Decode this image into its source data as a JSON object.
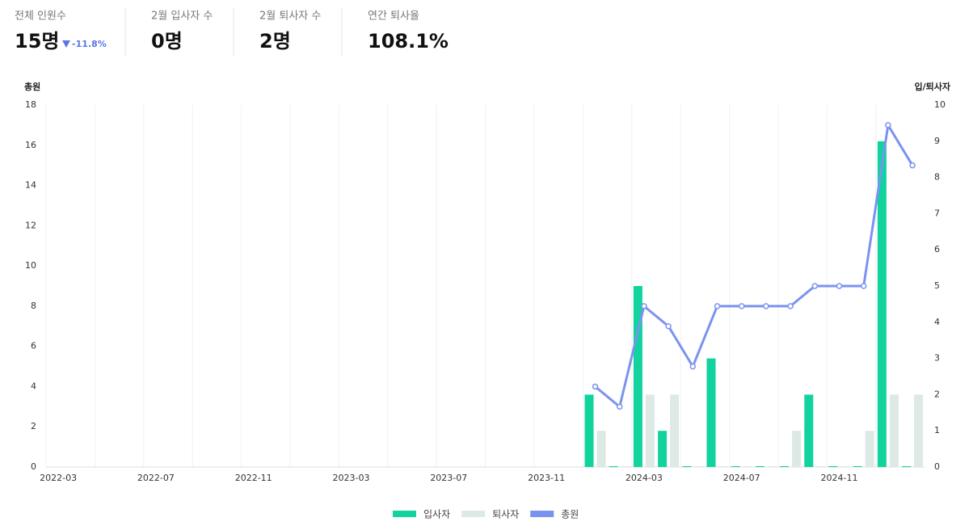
{
  "stats": [
    {
      "label": "전체 인원수",
      "value": "15명",
      "change": "-11.8%"
    },
    {
      "label": "2월 입사자 수",
      "value": "0명"
    },
    {
      "label": "2월 퇴사자 수",
      "value": "2명"
    },
    {
      "label": "연간 퇴사율",
      "value": "108.1%"
    }
  ],
  "chart_data": {
    "type": "bar-line",
    "y_label": "총원",
    "y2_label": "입/퇴사자",
    "categories": [
      "2022-03",
      null,
      null,
      null,
      "2022-07",
      null,
      null,
      null,
      "2022-11",
      null,
      null,
      null,
      "2023-03",
      null,
      null,
      null,
      "2023-07",
      null,
      null,
      null,
      "2023-11",
      null,
      null,
      null,
      "2024-03",
      null,
      null,
      null,
      "2024-07",
      null,
      null,
      null,
      "2024-11",
      null,
      null,
      null
    ],
    "ylim": [
      0,
      18
    ],
    "yticks": [
      0,
      2,
      4,
      6,
      8,
      10,
      12,
      14,
      16,
      18
    ],
    "y2lim": [
      0,
      10
    ],
    "y2ticks": [
      0,
      1,
      2,
      3,
      4,
      5,
      6,
      7,
      8,
      9,
      10
    ],
    "series": [
      {
        "name": "입사자",
        "type": "bar",
        "axis": "y2",
        "color": "#10d39e",
        "values": [
          null,
          null,
          null,
          null,
          null,
          null,
          null,
          null,
          null,
          null,
          null,
          null,
          null,
          null,
          null,
          null,
          null,
          null,
          null,
          null,
          null,
          null,
          2,
          0,
          5,
          1,
          0,
          3,
          0,
          0,
          0,
          2,
          0,
          0,
          9,
          0
        ]
      },
      {
        "name": "퇴사자",
        "type": "bar",
        "axis": "y2",
        "color": "#dde9e4",
        "values": [
          null,
          null,
          null,
          null,
          null,
          null,
          null,
          null,
          null,
          null,
          null,
          null,
          null,
          null,
          null,
          null,
          null,
          null,
          null,
          null,
          null,
          null,
          1,
          0,
          2,
          2,
          0,
          0,
          0,
          0,
          1,
          0,
          0,
          1,
          2,
          2
        ]
      },
      {
        "name": "총원",
        "type": "line",
        "color": "#7b93f0",
        "values": [
          null,
          null,
          null,
          null,
          null,
          null,
          null,
          null,
          null,
          null,
          null,
          null,
          null,
          null,
          null,
          null,
          null,
          null,
          null,
          null,
          null,
          null,
          4,
          3,
          8,
          7,
          5,
          8,
          8,
          8,
          8,
          9,
          9,
          9,
          17,
          15
        ]
      }
    ]
  }
}
